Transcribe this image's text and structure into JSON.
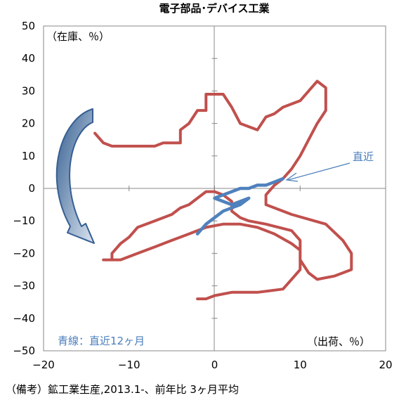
{
  "chart_data": {
    "type": "line",
    "title": "電子部品･デバイス工業",
    "xlabel": "（出荷、％）",
    "ylabel": "（在庫、％）",
    "xlim": [
      -20,
      20
    ],
    "ylim": [
      -50,
      50
    ],
    "x_ticks": [
      -20,
      -10,
      0,
      10,
      20
    ],
    "y_ticks": [
      50,
      40,
      30,
      20,
      10,
      0,
      -10,
      -20,
      -30,
      -40,
      -50
    ],
    "grid": false,
    "legend": "none",
    "series": [
      {
        "color": "#c0504d",
        "points": [
          [
            -14,
            17
          ],
          [
            -13,
            14
          ],
          [
            -12,
            13
          ],
          [
            -7,
            13
          ],
          [
            -6,
            14
          ],
          [
            -4,
            14
          ],
          [
            -4,
            18
          ],
          [
            -3,
            20
          ],
          [
            -2,
            24
          ],
          [
            -1,
            24
          ],
          [
            -1,
            29
          ],
          [
            1,
            29
          ],
          [
            2,
            25
          ],
          [
            3,
            20
          ],
          [
            5,
            18
          ],
          [
            6,
            22
          ],
          [
            7,
            23
          ],
          [
            8,
            25
          ],
          [
            10,
            27
          ],
          [
            11,
            30
          ],
          [
            12,
            33
          ],
          [
            13,
            31
          ],
          [
            13,
            24
          ],
          [
            12,
            20
          ],
          [
            11,
            15
          ],
          [
            10,
            10
          ],
          [
            9,
            6
          ],
          [
            8,
            3
          ],
          [
            7,
            1
          ],
          [
            6,
            -2
          ],
          [
            6,
            -5
          ],
          [
            9,
            -8
          ],
          [
            13,
            -11
          ],
          [
            15,
            -16
          ],
          [
            16,
            -20
          ],
          [
            16,
            -25
          ],
          [
            14,
            -27
          ],
          [
            12,
            -28
          ],
          [
            11,
            -26
          ],
          [
            10,
            -22
          ],
          [
            10,
            -16
          ],
          [
            9,
            -13
          ],
          [
            6,
            -11
          ],
          [
            4,
            -10
          ],
          [
            3,
            -9
          ],
          [
            2,
            -7
          ],
          [
            2,
            -4
          ],
          [
            1,
            -2
          ],
          [
            0,
            -1
          ],
          [
            -1,
            -1
          ],
          [
            -2,
            -3
          ],
          [
            -3,
            -5
          ],
          [
            -4,
            -6
          ],
          [
            -5,
            -8
          ],
          [
            -7,
            -10
          ],
          [
            -9,
            -12
          ],
          [
            -10,
            -15
          ],
          [
            -11,
            -17
          ],
          [
            -12,
            -20
          ],
          [
            -12,
            -22
          ],
          [
            -13,
            -22
          ],
          [
            -11,
            -22
          ],
          [
            -9,
            -20
          ],
          [
            -7,
            -18
          ],
          [
            -5,
            -16
          ],
          [
            -3,
            -14
          ],
          [
            -1,
            -12
          ],
          [
            1,
            -11
          ],
          [
            3,
            -11
          ],
          [
            5,
            -12
          ],
          [
            7,
            -14
          ],
          [
            9,
            -17
          ],
          [
            10,
            -19
          ],
          [
            10,
            -22
          ],
          [
            10,
            -25
          ],
          [
            9,
            -28
          ],
          [
            8,
            -31
          ],
          [
            5,
            -32
          ],
          [
            2,
            -32
          ],
          [
            0,
            -33
          ],
          [
            -1,
            -34
          ],
          [
            -2,
            -34
          ]
        ]
      },
      {
        "color": "#4f81bd",
        "points": [
          [
            -2,
            -14
          ],
          [
            -1,
            -11
          ],
          [
            0,
            -9
          ],
          [
            1,
            -7
          ],
          [
            2,
            -6
          ],
          [
            3,
            -5
          ],
          [
            4,
            -3
          ],
          [
            3,
            -4
          ],
          [
            2,
            -5
          ],
          [
            1,
            -4
          ],
          [
            0,
            -3
          ],
          [
            1,
            -2
          ],
          [
            2,
            -1
          ],
          [
            3,
            0
          ],
          [
            4,
            0
          ],
          [
            5,
            1
          ],
          [
            6,
            1
          ],
          [
            7,
            2
          ],
          [
            8,
            3
          ]
        ]
      }
    ],
    "annotations": {
      "latest": "直近",
      "blue_note": "青線：直近12ヶ月"
    }
  },
  "footnote": "（備考）鉱工業生産,2013.1-、前年比 3ヶ月平均"
}
